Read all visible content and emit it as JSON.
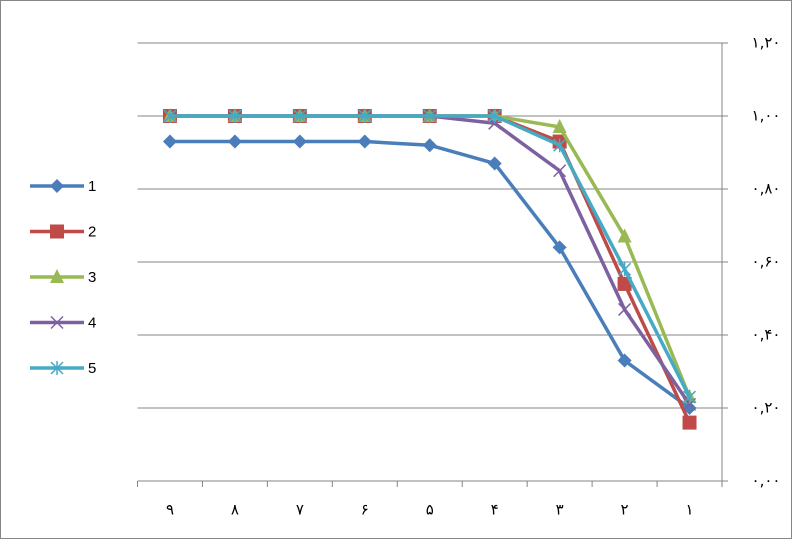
{
  "chart_data": {
    "type": "line",
    "categories": [
      "۹",
      "۸",
      "۷",
      "۶",
      "۵",
      "۴",
      "۳",
      "۲",
      "۱"
    ],
    "series": [
      {
        "name": "1",
        "color": "#4a7ebb",
        "marker": "diamond",
        "values": [
          0.93,
          0.93,
          0.93,
          0.93,
          0.92,
          0.87,
          0.64,
          0.33,
          0.2
        ]
      },
      {
        "name": "2",
        "color": "#be4b48",
        "marker": "square",
        "values": [
          1.0,
          1.0,
          1.0,
          1.0,
          1.0,
          1.0,
          0.93,
          0.54,
          0.16
        ]
      },
      {
        "name": "3",
        "color": "#98b954",
        "marker": "triangle",
        "values": [
          1.0,
          1.0,
          1.0,
          1.0,
          1.0,
          1.0,
          0.97,
          0.67,
          0.23
        ]
      },
      {
        "name": "4",
        "color": "#7d60a0",
        "marker": "x",
        "values": [
          1.0,
          1.0,
          1.0,
          1.0,
          1.0,
          0.98,
          0.85,
          0.47,
          0.21
        ]
      },
      {
        "name": "5",
        "color": "#46aac5",
        "marker": "star",
        "values": [
          1.0,
          1.0,
          1.0,
          1.0,
          1.0,
          1.0,
          0.92,
          0.58,
          0.23
        ]
      }
    ],
    "ylim": [
      0,
      1.2
    ],
    "yticks": [
      {
        "value": 0,
        "label": "۰,۰۰"
      },
      {
        "value": 0.2,
        "label": "۰,۲۰"
      },
      {
        "value": 0.4,
        "label": "۰,۴۰"
      },
      {
        "value": 0.6,
        "label": "۰,۶۰"
      },
      {
        "value": 0.8,
        "label": "۰,۸۰"
      },
      {
        "value": 1.0,
        "label": "۱,۰۰"
      },
      {
        "value": 1.2,
        "label": "۱,۲۰"
      }
    ],
    "y_axis_side": "right",
    "grid": true,
    "legend": "left"
  }
}
